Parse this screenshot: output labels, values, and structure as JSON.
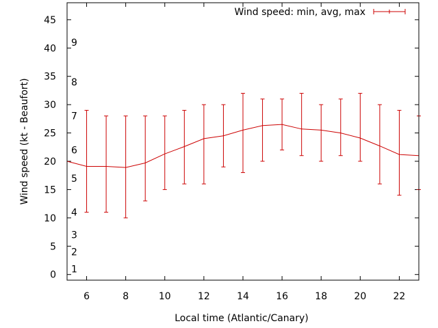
{
  "chart_data": {
    "type": "line",
    "xlabel": "Local time (Atlantic/Canary)",
    "ylabel": "Wind speed (kt - Beaufort)",
    "xlim": [
      5,
      23
    ],
    "ylim": [
      -1,
      48
    ],
    "xticks": [
      6,
      8,
      10,
      12,
      14,
      16,
      18,
      20,
      22
    ],
    "yticks": [
      0,
      5,
      10,
      15,
      20,
      25,
      30,
      35,
      40,
      45
    ],
    "beaufort_labels": [
      {
        "label": "1",
        "y": 1
      },
      {
        "label": "2",
        "y": 4
      },
      {
        "label": "3",
        "y": 7
      },
      {
        "label": "4",
        "y": 11
      },
      {
        "label": "5",
        "y": 17
      },
      {
        "label": "6",
        "y": 22
      },
      {
        "label": "7",
        "y": 28
      },
      {
        "label": "8",
        "y": 34
      },
      {
        "label": "9",
        "y": 41
      }
    ],
    "legend": "top-right",
    "series": [
      {
        "name": "Wind speed: min, avg, max",
        "color": "#cc0000",
        "x": [
          5,
          6,
          7,
          8,
          9,
          10,
          11,
          12,
          13,
          14,
          15,
          16,
          17,
          18,
          19,
          20,
          21,
          22,
          23
        ],
        "avg": [
          20.0,
          19.1,
          19.1,
          18.9,
          19.7,
          21.3,
          22.6,
          24.0,
          24.5,
          25.5,
          26.3,
          26.5,
          25.7,
          25.5,
          25.0,
          24.1,
          22.7,
          21.2,
          21.0
        ],
        "min": [
          null,
          11,
          11,
          10,
          13,
          15,
          16,
          16,
          19,
          18,
          20,
          22,
          21,
          20,
          21,
          20,
          16,
          14,
          15
        ],
        "max": [
          null,
          29,
          28,
          28,
          28,
          28,
          29,
          30,
          30,
          32,
          31,
          31,
          32,
          30,
          31,
          32,
          30,
          29,
          28
        ]
      }
    ]
  }
}
